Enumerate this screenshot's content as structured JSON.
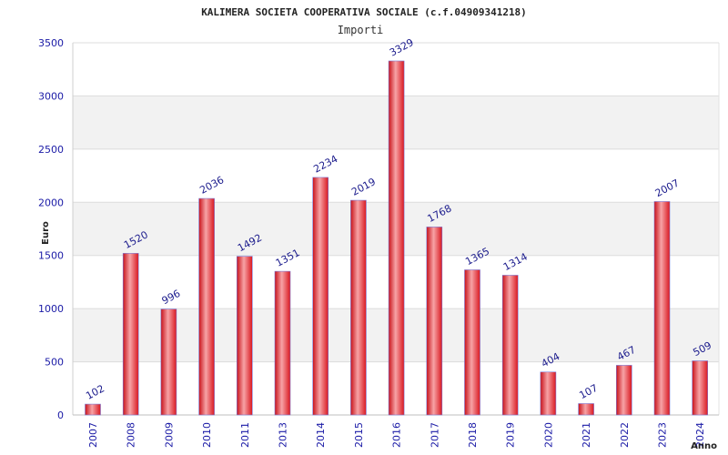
{
  "chart_data": {
    "type": "bar",
    "title": "KALIMERA SOCIETA COOPERATIVA SOCIALE (c.f.04909341218)",
    "subtitle": "Importi",
    "xlabel": "Anno",
    "ylabel": "Euro",
    "categories": [
      "2007",
      "2008",
      "2009",
      "2010",
      "2011",
      "2013",
      "2014",
      "2015",
      "2016",
      "2017",
      "2018",
      "2019",
      "2020",
      "2021",
      "2022",
      "2023",
      "2024"
    ],
    "values": [
      102,
      1520,
      996,
      2036,
      1492,
      1351,
      2234,
      2019,
      3329,
      1768,
      1365,
      1314,
      404,
      107,
      467,
      2007,
      509
    ],
    "ylim": [
      0,
      3500
    ],
    "yticks": [
      0,
      500,
      1000,
      1500,
      2000,
      2500,
      3000,
      3500
    ],
    "grid": true,
    "colors": {
      "bar": "#e0262c",
      "bar_highlight": "#f5a0a3",
      "bar_edge": "#7a7ad8",
      "label": "#1a1a8c",
      "band": "#f2f2f2"
    }
  }
}
